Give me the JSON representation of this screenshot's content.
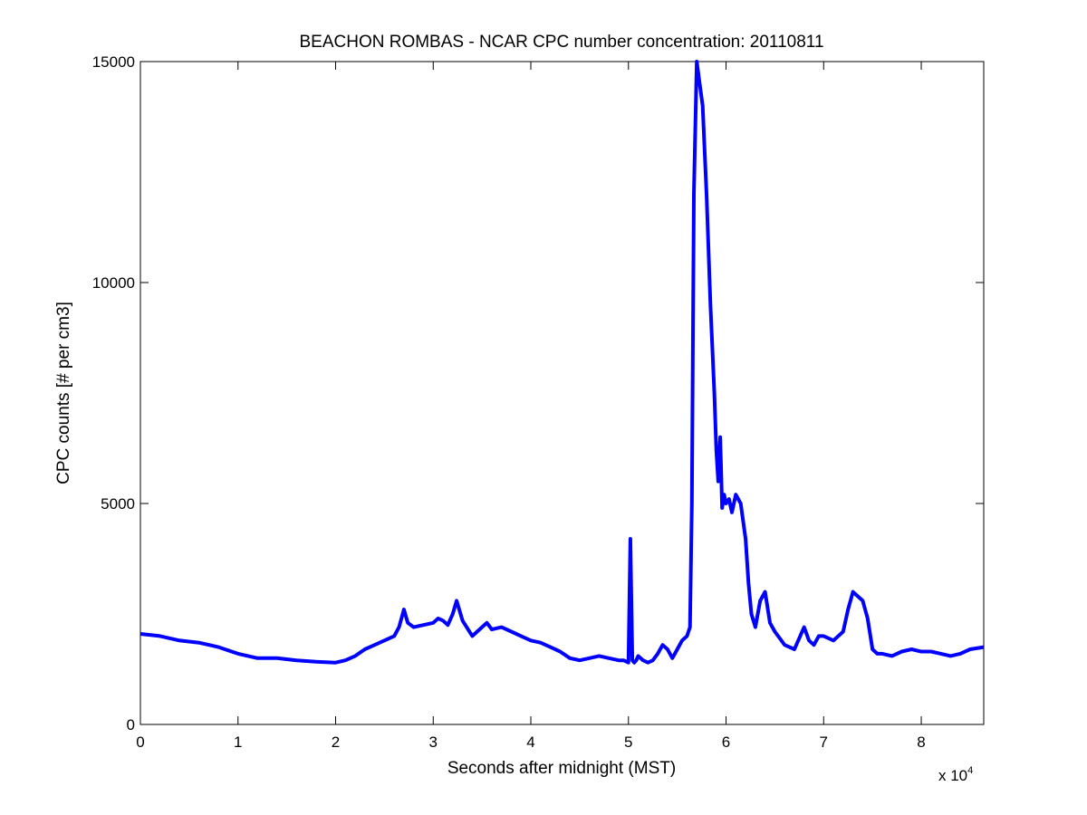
{
  "chart_data": {
    "type": "line",
    "title": "BEACHON ROMBAS - NCAR CPC number concentration: 20110811",
    "xlabel": "Seconds after midnight (MST)",
    "ylabel": "CPC counts [# per cm3]",
    "x_multiplier_label": "x 10",
    "x_multiplier_exponent": "4",
    "xlim": [
      0,
      86400
    ],
    "ylim": [
      0,
      15000
    ],
    "x_tick_values": [
      0,
      10000,
      20000,
      30000,
      40000,
      50000,
      60000,
      70000,
      80000
    ],
    "x_tick_labels": [
      "0",
      "1",
      "2",
      "3",
      "4",
      "5",
      "6",
      "7",
      "8"
    ],
    "y_tick_values": [
      0,
      5000,
      10000,
      15000
    ],
    "y_tick_labels": [
      "0",
      "5000",
      "10000",
      "15000"
    ],
    "grid": false,
    "line_color": "#0000ff",
    "series": [
      {
        "x": [
          0,
          2000,
          4000,
          6000,
          8000,
          10000,
          12000,
          14000,
          16000,
          18000,
          20000,
          21000,
          22000,
          23000,
          24000,
          25000,
          26000,
          26500,
          27000,
          27400,
          28000,
          29000,
          30000,
          30500,
          31000,
          31500,
          32000,
          32400,
          33000,
          34000,
          35000,
          35500,
          36000,
          37000,
          38000,
          39000,
          40000,
          41000,
          42000,
          43000,
          44000,
          45000,
          46000,
          47000,
          48000,
          49000,
          49500,
          50000,
          50200,
          50400,
          50600,
          50800,
          51000,
          51500,
          52000,
          52500,
          53000,
          53500,
          54000,
          54500,
          55000,
          55500,
          56000,
          56300,
          56500,
          56700,
          57000,
          57300,
          57600,
          58000,
          58400,
          58800,
          59000,
          59200,
          59400,
          59600,
          59800,
          60000,
          60300,
          60600,
          61000,
          61500,
          62000,
          62300,
          62600,
          63000,
          63500,
          64000,
          64500,
          65000,
          66000,
          67000,
          68000,
          68500,
          69000,
          69500,
          70000,
          71000,
          72000,
          72500,
          73000,
          73500,
          74000,
          74500,
          75000,
          75500,
          76000,
          77000,
          78000,
          79000,
          80000,
          81000,
          82000,
          83000,
          84000,
          85000,
          86400
        ],
        "y": [
          2050,
          2000,
          1900,
          1850,
          1750,
          1600,
          1500,
          1500,
          1450,
          1420,
          1400,
          1450,
          1550,
          1700,
          1800,
          1900,
          2000,
          2200,
          2600,
          2300,
          2200,
          2250,
          2300,
          2400,
          2350,
          2250,
          2500,
          2800,
          2350,
          2000,
          2200,
          2300,
          2150,
          2200,
          2100,
          2000,
          1900,
          1850,
          1750,
          1650,
          1500,
          1450,
          1500,
          1550,
          1500,
          1450,
          1450,
          1400,
          4200,
          1450,
          1400,
          1450,
          1550,
          1450,
          1400,
          1450,
          1600,
          1800,
          1700,
          1500,
          1700,
          1900,
          2000,
          2200,
          5000,
          12000,
          15000,
          14500,
          14000,
          12000,
          9500,
          7500,
          6200,
          5500,
          6500,
          4900,
          5200,
          5000,
          5100,
          4800,
          5200,
          5000,
          4200,
          3200,
          2500,
          2200,
          2800,
          3000,
          2300,
          2100,
          1800,
          1700,
          2200,
          1900,
          1800,
          2000,
          2000,
          1900,
          2100,
          2600,
          3000,
          2900,
          2800,
          2400,
          1700,
          1600,
          1600,
          1550,
          1650,
          1700,
          1650,
          1650,
          1600,
          1550,
          1600,
          1700,
          1750
        ]
      }
    ]
  }
}
